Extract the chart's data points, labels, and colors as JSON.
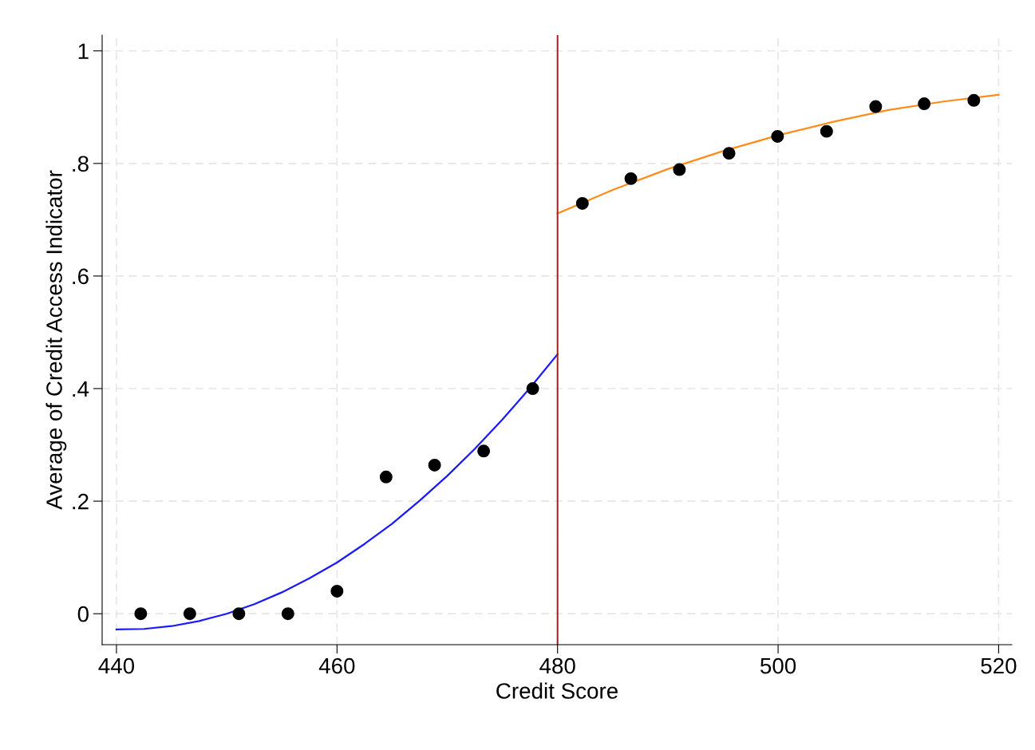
{
  "chart_data": {
    "type": "scatter",
    "xlabel": "Credit Score",
    "ylabel": "Average of Credit Access Indicator",
    "xlim": [
      438.7,
      521.2
    ],
    "ylim": [
      -0.055,
      1.028
    ],
    "xticks": [
      440,
      460,
      480,
      500,
      520
    ],
    "yticks": [
      {
        "value": 0,
        "label": "0"
      },
      {
        "value": 0.2,
        "label": ".2"
      },
      {
        "value": 0.4,
        "label": ".4"
      },
      {
        "value": 0.6,
        "label": ".6"
      },
      {
        "value": 0.8,
        "label": ".8"
      },
      {
        "value": 1,
        "label": "1"
      }
    ],
    "grid": true,
    "marker": "circle",
    "series": [
      {
        "color": "#000000",
        "x": [
          442.2,
          446.65,
          451.1,
          455.55,
          460.0,
          464.45,
          468.85,
          473.3,
          477.75,
          482.25,
          486.65,
          491.05,
          495.55,
          499.95,
          504.4,
          508.85,
          513.25,
          517.75
        ],
        "values": [
          0.0,
          0.0,
          0.0,
          0.0,
          0.04,
          0.243,
          0.264,
          0.289,
          0.4,
          0.729,
          0.773,
          0.789,
          0.818,
          0.848,
          0.857,
          0.901,
          0.906,
          0.912
        ]
      },
      {
        "type": "line",
        "color": "#1a1aff",
        "marker": "none",
        "x": [
          440,
          442.5,
          445,
          447.5,
          450,
          452.5,
          455,
          457.5,
          460,
          462.5,
          465,
          467.5,
          470,
          472.5,
          475,
          477.5,
          480
        ],
        "values": [
          -0.028,
          -0.027,
          -0.022,
          -0.013,
          0.0,
          0.017,
          0.038,
          0.063,
          0.091,
          0.124,
          0.16,
          0.201,
          0.245,
          0.293,
          0.345,
          0.401,
          0.461
        ]
      },
      {
        "type": "line",
        "color": "#ff8c1a",
        "marker": "none",
        "x": [
          480,
          485,
          490,
          495,
          500,
          505,
          510,
          515,
          520
        ],
        "values": [
          0.711,
          0.753,
          0.79,
          0.822,
          0.85,
          0.874,
          0.895,
          0.91,
          0.922
        ]
      }
    ],
    "ref_lines": [
      {
        "axis": "x",
        "value": 480,
        "color": "#a01c1c",
        "line_style": "solid"
      }
    ]
  }
}
